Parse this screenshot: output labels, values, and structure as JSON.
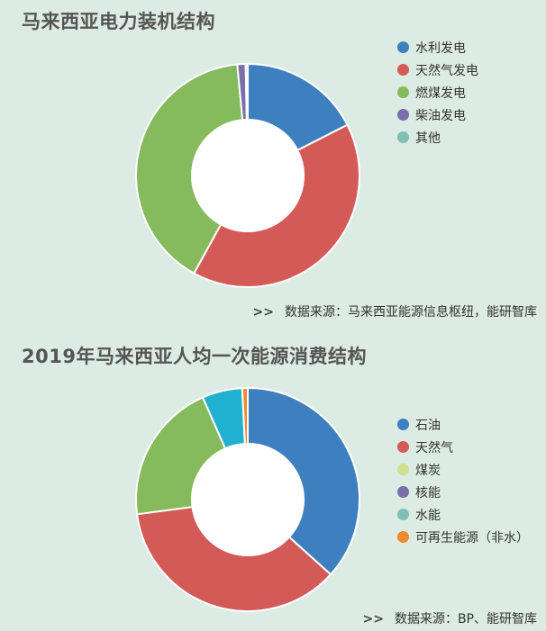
{
  "chart_data": [
    {
      "type": "pie",
      "title": "马来西亚电力装机结构",
      "categories": [
        "水利发电",
        "天然气发电",
        "燃煤发电",
        "柴油发电",
        "其他"
      ],
      "values": [
        17.5,
        40.5,
        40.5,
        1.2,
        0.3
      ],
      "colors": [
        "#3e7fbf",
        "#d45a57",
        "#85bb5c",
        "#7a6fa8",
        "#7fbfb4"
      ],
      "start_angle_deg": 0,
      "hole_ratio": 0.5,
      "legend_position": "right",
      "source_prefix": ">>",
      "source": "数据来源：马来西亚能源信息枢纽，能研智库"
    },
    {
      "type": "pie",
      "title": "2019年马来西亚人均一次能源消费结构",
      "categories": [
        "石油",
        "天然气",
        "煤炭",
        "核能",
        "水能",
        "可再生能源（非水）"
      ],
      "values": [
        36.7,
        36.2,
        20.5,
        0,
        5.8,
        0.8
      ],
      "legend_colors": [
        "#3e7fbf",
        "#d45a57",
        "#cfe08f",
        "#7a6fa8",
        "#7fbfb4",
        "#f08a2c"
      ],
      "slice_colors": [
        "#3e7fbf",
        "#d45a57",
        "#85bb5c",
        "#7a6fa8",
        "#1fb1cf",
        "#f08a2c"
      ],
      "start_angle_deg": 0,
      "hole_ratio": 0.5,
      "legend_position": "right",
      "source_prefix": ">>",
      "source": "数据来源：BP、能研智库"
    }
  ]
}
